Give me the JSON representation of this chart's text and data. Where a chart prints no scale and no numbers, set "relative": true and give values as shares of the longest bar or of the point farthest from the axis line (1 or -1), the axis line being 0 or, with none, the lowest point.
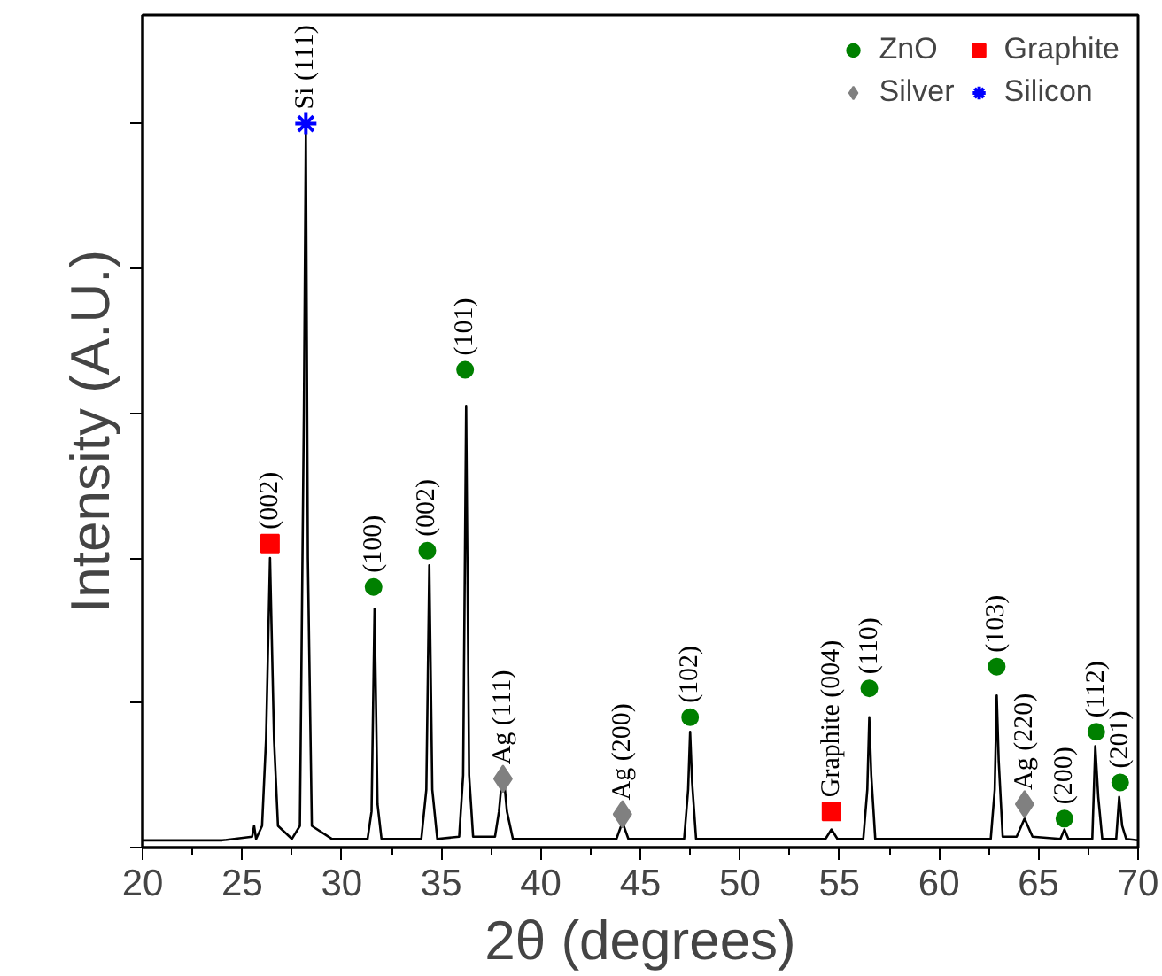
{
  "chart_data": {
    "type": "line",
    "xlabel": "2θ (degrees)",
    "ylabel": "Intensity (A.U.)",
    "relative": true,
    "tick_labels": "x",
    "grid": false,
    "legend": "top right",
    "line_style": "solid",
    "xlim": [
      20,
      70
    ],
    "xticks": [
      20,
      25,
      30,
      35,
      40,
      45,
      50,
      55,
      60,
      65,
      70
    ],
    "x": [
      20,
      24,
      25.5,
      25.6,
      25.7,
      26.0,
      26.2,
      26.4,
      26.6,
      26.8,
      27.5,
      27.9,
      28.1,
      28.2,
      28.3,
      28.5,
      29.5,
      31.3,
      31.5,
      31.65,
      31.8,
      32.0,
      34.0,
      34.25,
      34.4,
      34.55,
      34.8,
      35.9,
      36.1,
      36.25,
      36.4,
      36.6,
      37.7,
      37.9,
      38.1,
      38.3,
      38.6,
      43.8,
      44.1,
      44.4,
      47.2,
      47.4,
      47.5,
      47.6,
      47.8,
      54.3,
      54.6,
      54.9,
      56.2,
      56.4,
      56.5,
      56.6,
      56.8,
      62.6,
      62.8,
      62.9,
      63.0,
      63.2,
      63.9,
      64.3,
      64.7,
      66.1,
      66.3,
      66.5,
      67.7,
      67.85,
      68.0,
      68.2,
      68.9,
      69.05,
      69.2,
      69.4,
      70
    ],
    "series": [
      {
        "color": "#000000",
        "values": [
          0.01,
          0.01,
          0.015,
          0.03,
          0.012,
          0.03,
          0.15,
          0.4,
          0.15,
          0.03,
          0.012,
          0.03,
          0.6,
          0.99,
          0.4,
          0.03,
          0.012,
          0.012,
          0.05,
          0.33,
          0.06,
          0.012,
          0.012,
          0.08,
          0.39,
          0.08,
          0.012,
          0.015,
          0.1,
          0.61,
          0.1,
          0.015,
          0.015,
          0.05,
          0.11,
          0.05,
          0.012,
          0.012,
          0.035,
          0.012,
          0.012,
          0.08,
          0.16,
          0.09,
          0.012,
          0.012,
          0.025,
          0.012,
          0.012,
          0.08,
          0.18,
          0.1,
          0.012,
          0.012,
          0.08,
          0.21,
          0.12,
          0.015,
          0.015,
          0.04,
          0.015,
          0.012,
          0.025,
          0.012,
          0.012,
          0.14,
          0.07,
          0.012,
          0.012,
          0.07,
          0.03,
          0.012,
          0.01
        ]
      },
      {
        "type": "scatter",
        "name": "ZnO",
        "color": "#008000",
        "marker": "circle",
        "x": [
          31.6,
          34.3,
          36.2,
          47.5,
          56.5,
          62.9,
          66.3,
          67.9,
          69.1
        ],
        "values": [
          0.36,
          0.41,
          0.66,
          0.18,
          0.22,
          0.25,
          0.04,
          0.16,
          0.09
        ]
      },
      {
        "type": "scatter",
        "name": "Silver",
        "color": "#808080",
        "marker": "diamond",
        "x": [
          38.1,
          44.1,
          64.3
        ],
        "values": [
          0.095,
          0.046,
          0.06
        ]
      },
      {
        "type": "scatter",
        "name": "Graphite",
        "color": "#ff0000",
        "marker": "square",
        "x": [
          26.4,
          54.6
        ],
        "values": [
          0.42,
          0.05
        ]
      },
      {
        "type": "scatter",
        "name": "Silicon",
        "color": "#0000ff",
        "marker": "cross",
        "x": [
          28.2
        ],
        "values": [
          1.0
        ]
      }
    ],
    "annotations": [
      {
        "text": "Si (111)",
        "x": 28.2,
        "y": 1.0
      },
      {
        "text": "(002)",
        "x": 26.4,
        "y": 0.42
      },
      {
        "text": "(100)",
        "x": 31.6,
        "y": 0.36
      },
      {
        "text": "(002)",
        "x": 34.3,
        "y": 0.41
      },
      {
        "text": "(101)",
        "x": 36.2,
        "y": 0.66
      },
      {
        "text": "Ag (111)",
        "x": 38.1,
        "y": 0.095
      },
      {
        "text": "Ag (200)",
        "x": 44.1,
        "y": 0.046
      },
      {
        "text": "(102)",
        "x": 47.5,
        "y": 0.18
      },
      {
        "text": "Graphite (004)",
        "x": 54.6,
        "y": 0.05
      },
      {
        "text": "(110)",
        "x": 56.5,
        "y": 0.22
      },
      {
        "text": "(103)",
        "x": 62.9,
        "y": 0.25
      },
      {
        "text": "Ag (220)",
        "x": 64.3,
        "y": 0.06
      },
      {
        "text": "(200)",
        "x": 66.3,
        "y": 0.04
      },
      {
        "text": "(112)",
        "x": 67.9,
        "y": 0.16
      },
      {
        "text": "(201)",
        "x": 69.1,
        "y": 0.09
      }
    ]
  }
}
